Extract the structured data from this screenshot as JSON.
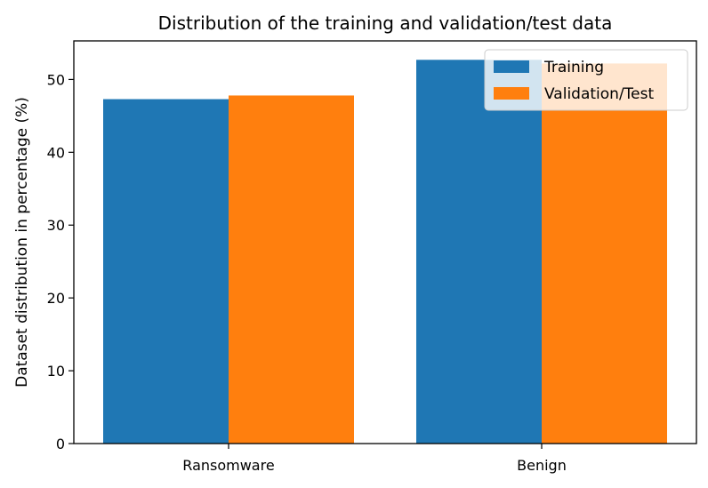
{
  "chart_data": {
    "type": "bar",
    "title": "Distribution of the training and validation/test data",
    "xlabel": "",
    "ylabel": "Dataset distribution in percentage (%)",
    "categories": [
      "Ransomware",
      "Benign"
    ],
    "series": [
      {
        "name": "Training",
        "values": [
          47.3,
          52.7
        ],
        "color": "#1f77b4"
      },
      {
        "name": "Validation/Test",
        "values": [
          47.8,
          52.2
        ],
        "color": "#ff7f0e"
      }
    ],
    "ylim": [
      0,
      55.3
    ],
    "yticks": [
      0,
      10,
      20,
      30,
      40,
      50
    ],
    "grid": false,
    "legend_position": "top-right"
  }
}
